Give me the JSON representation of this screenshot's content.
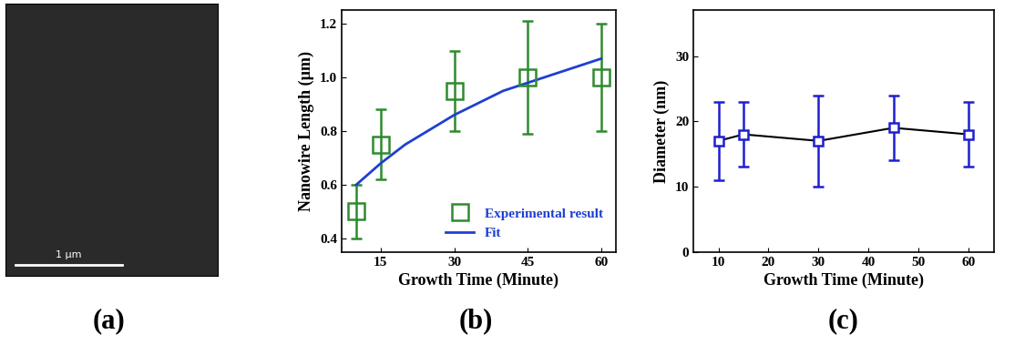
{
  "chart_data": [
    {
      "type": "image",
      "label": "(a)",
      "scale_bar": "1 µm"
    },
    {
      "type": "scatter",
      "label": "(b)",
      "x_label": "Growth Time (Minute)",
      "y_label": "Nanowire Length (µm)",
      "xlim": [
        7,
        63
      ],
      "xticks": [
        15,
        30,
        45,
        60
      ],
      "ylim": [
        0.35,
        1.25
      ],
      "yticks": [
        0.4,
        0.6,
        0.8,
        1.0,
        1.2
      ],
      "legend": "lower right",
      "series": [
        {
          "name": "Experimental result",
          "type": "scatter",
          "color": "#2e8b2e",
          "marker": "square",
          "x": [
            10,
            15,
            30,
            45,
            60
          ],
          "values": [
            0.5,
            0.75,
            0.95,
            1.0,
            1.0
          ],
          "errors": [
            0.1,
            0.13,
            0.15,
            0.21,
            0.2
          ]
        },
        {
          "name": "Fit",
          "type": "line",
          "color": "#1f3fd0",
          "line_style": "solid",
          "x": [
            10,
            15,
            20,
            30,
            40,
            45,
            50,
            60
          ],
          "values": [
            0.6,
            0.68,
            0.75,
            0.86,
            0.95,
            0.98,
            1.01,
            1.07
          ]
        }
      ]
    },
    {
      "type": "line",
      "label": "(c)",
      "x_label": "Growth Time (Minute)",
      "y_label": "Diameter (nm)",
      "xlim": [
        5,
        65
      ],
      "xticks": [
        10,
        20,
        30,
        40,
        50,
        60
      ],
      "ylim": [
        0,
        37
      ],
      "yticks": [
        0,
        10,
        20,
        30
      ],
      "series": [
        {
          "type": "line",
          "color": "#1f1fd0",
          "marker": "square",
          "line_style": "solid",
          "x": [
            10,
            15,
            30,
            45,
            60
          ],
          "values": [
            17,
            18,
            17,
            19,
            18
          ],
          "errors": [
            6,
            5,
            7,
            5,
            5
          ]
        }
      ]
    }
  ]
}
